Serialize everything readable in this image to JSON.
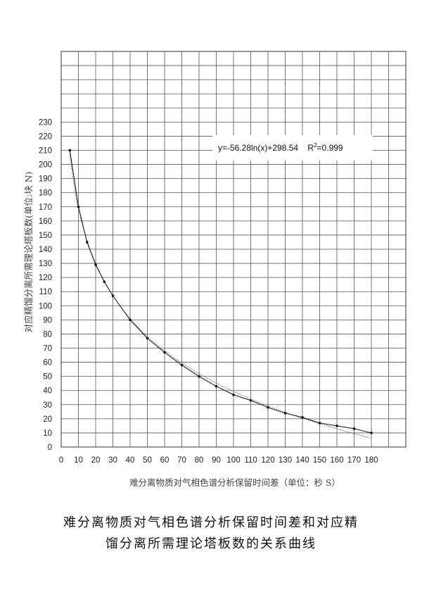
{
  "chart_data": {
    "type": "scatter",
    "title": "",
    "xlabel": "难分离物质对气相色谱分析保留时间差（单位：秒 S）",
    "ylabel": "对应精馏分离所需理论塔板数(单位:块 N)",
    "x_ticks": [
      "0",
      "10",
      "20",
      "30",
      "40",
      "50",
      "60",
      "70",
      "80",
      "90",
      "100",
      "110",
      "120",
      "130",
      "140",
      "150",
      "160",
      "170",
      "180"
    ],
    "y_ticks": [
      "0",
      "10",
      "20",
      "30",
      "40",
      "50",
      "60",
      "70",
      "80",
      "90",
      "100",
      "110",
      "120",
      "130",
      "140",
      "150",
      "160",
      "170",
      "180",
      "190",
      "200",
      "210",
      "220",
      "230"
    ],
    "xlim": [
      0,
      200
    ],
    "ylim": [
      0,
      280
    ],
    "grid": true,
    "annotation": {
      "equation": "y=-56.28ln(x)+298.54",
      "r2_prefix": "R",
      "r2_sup": "2",
      "r2_value": "=0.999"
    },
    "series": [
      {
        "role": "data",
        "x": [
          5,
          10,
          15,
          20,
          25,
          30,
          40,
          50,
          60,
          70,
          80,
          90,
          100,
          110,
          120,
          130,
          140,
          150,
          160,
          170,
          180
        ],
        "y": [
          210,
          170,
          145,
          129,
          117,
          107,
          90,
          77,
          67,
          58,
          50,
          43,
          37,
          33,
          28,
          24,
          21,
          17,
          15,
          13,
          10
        ]
      },
      {
        "role": "trendline",
        "style": "dotted",
        "equation": {
          "a": -56.28,
          "b": 298.54,
          "form": "a*ln(x)+b"
        },
        "x_range": [
          5,
          180
        ]
      }
    ]
  },
  "caption": {
    "line1": "难分离物质对气相色谱分析保留时间差和对应精",
    "line2": "馏分离所需理论塔板数的关系曲线"
  }
}
